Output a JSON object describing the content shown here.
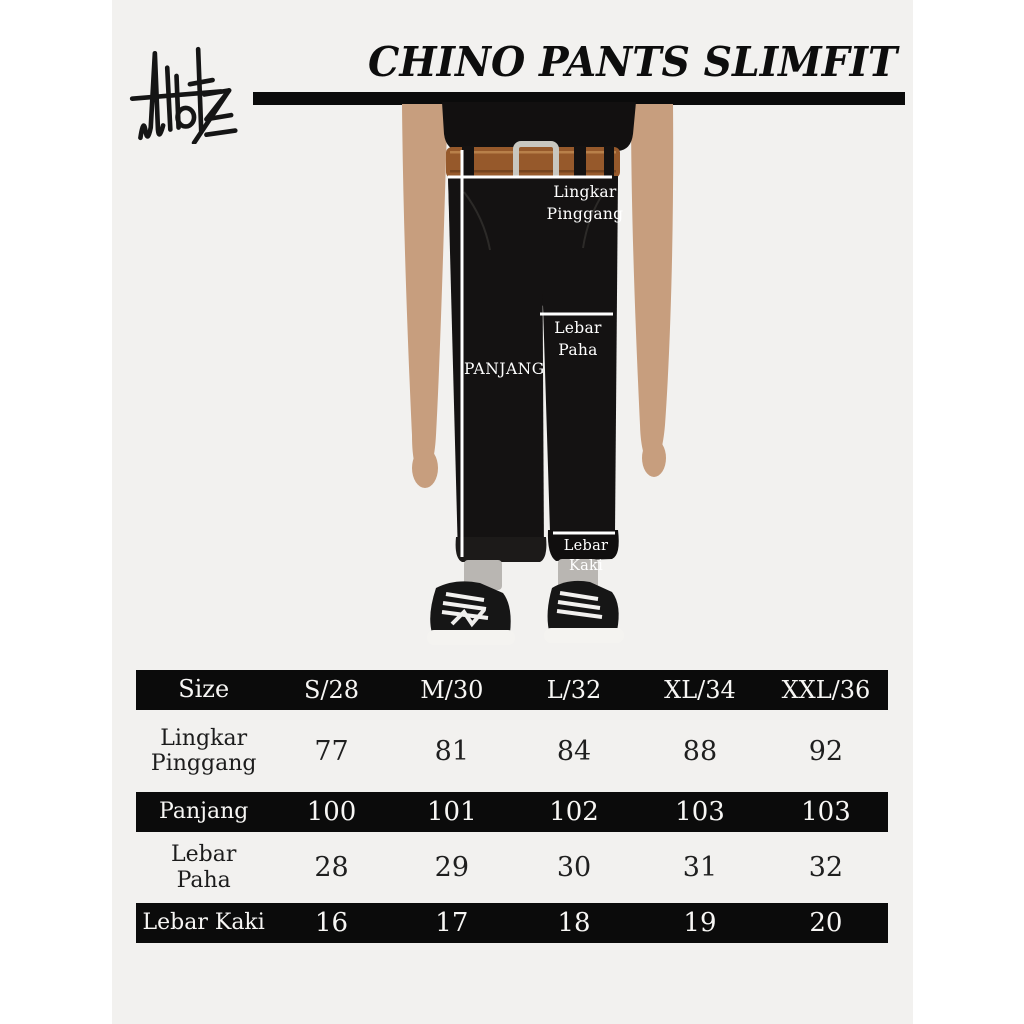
{
  "brand": {
    "logo_icon": "signature-logo"
  },
  "header": {
    "title": "CHINO PANTS SLIMFIT"
  },
  "photo": {
    "description_icons": [
      "male-model-photo",
      "measurement-lines"
    ],
    "annotations": {
      "waist": {
        "line1": "Lingkar",
        "line2": "Pinggang"
      },
      "thigh": {
        "line1": "Lebar",
        "line2": "Paha"
      },
      "length": {
        "label": "PANJANG"
      },
      "leg": {
        "line1": "Lebar",
        "line2": "Kaki"
      }
    }
  },
  "size_chart": {
    "columns": [
      "Size",
      "S/28",
      "M/30",
      "L/32",
      "XL/34",
      "XXL/36"
    ],
    "rows": [
      {
        "label": "Lingkar Pinggang",
        "values": [
          "77",
          "81",
          "84",
          "88",
          "92"
        ],
        "style": "light"
      },
      {
        "label": "Panjang",
        "values": [
          "100",
          "101",
          "102",
          "103",
          "103"
        ],
        "style": "dark"
      },
      {
        "label": "Lebar Paha",
        "values": [
          "28",
          "29",
          "30",
          "31",
          "32"
        ],
        "style": "light"
      },
      {
        "label": "Lebar Kaki",
        "values": [
          "16",
          "17",
          "18",
          "19",
          "20"
        ],
        "style": "dark"
      }
    ]
  },
  "colors": {
    "page_background": "#ffffff",
    "panel_background": "#f2f1ef",
    "bar_black": "#0b0b0b",
    "text_dark": "#1c1c1c",
    "text_light": "#f7f6f4",
    "annotation_white": "#ffffff",
    "skin": "#c79e7e",
    "belt_brown": "#96592b",
    "buckle_silver": "#c8c7c0",
    "sock_gray": "#b9b6b2",
    "shoe_sole": "#f4f3f0"
  }
}
